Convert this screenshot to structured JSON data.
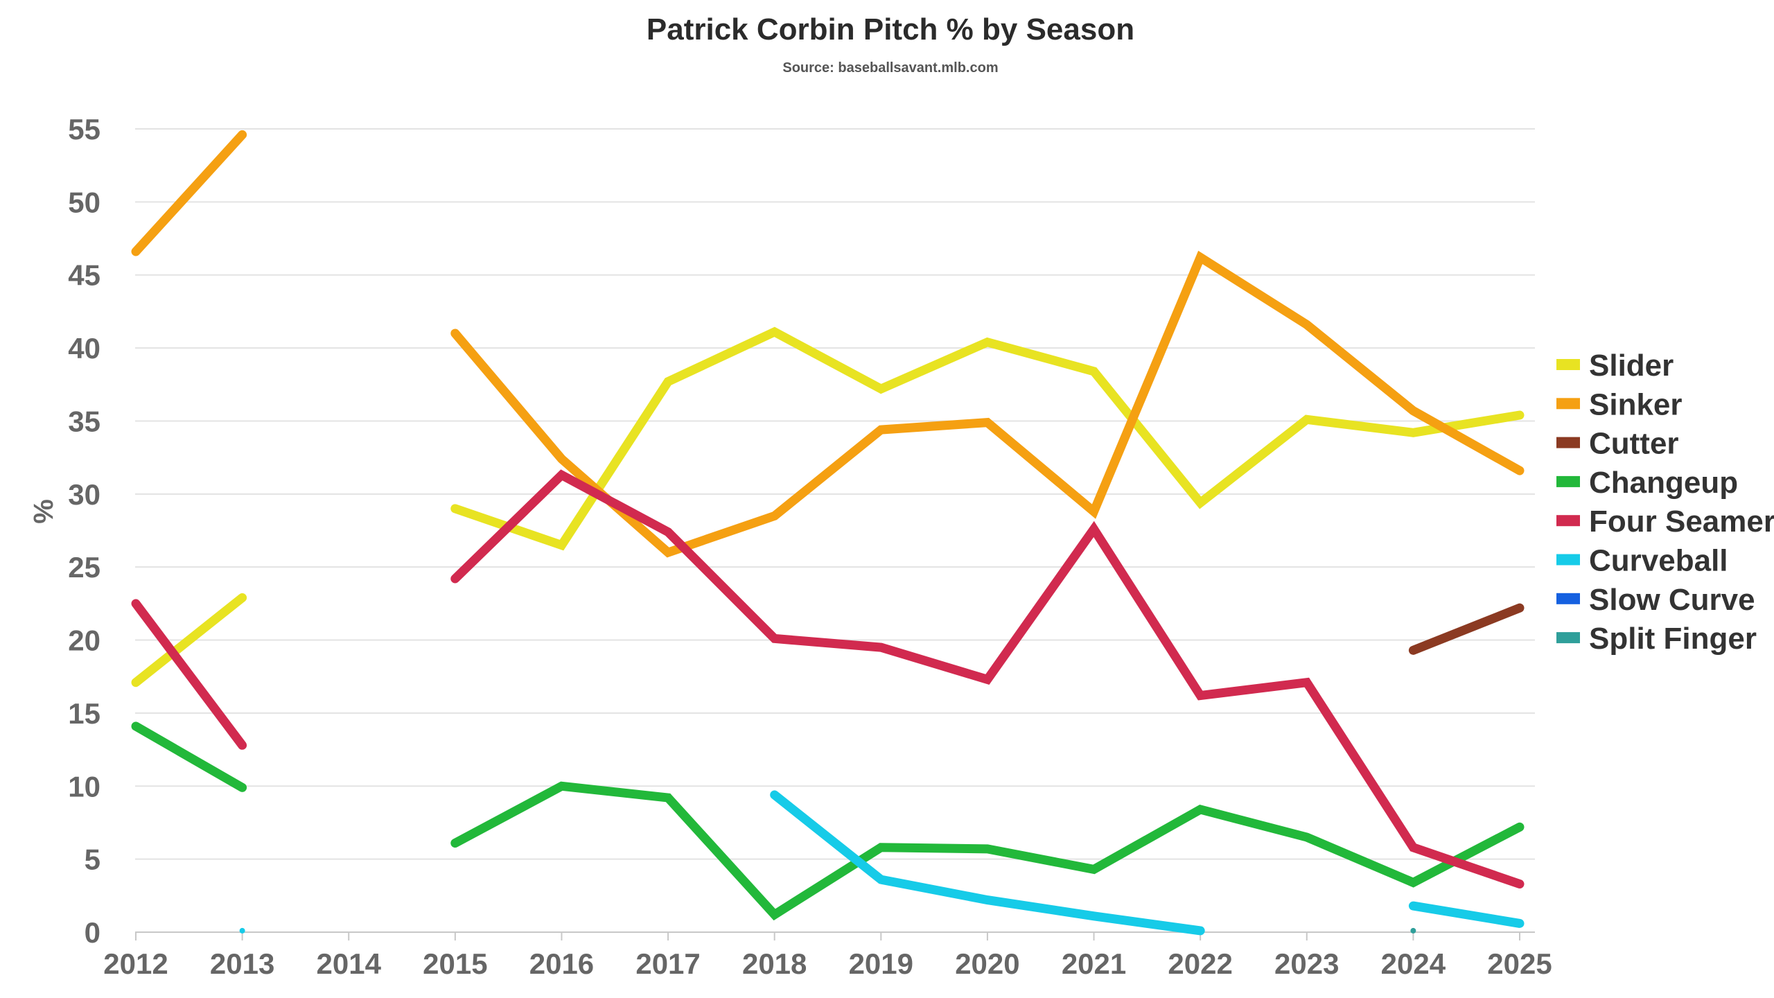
{
  "chart_data": {
    "type": "line",
    "title": "Patrick Corbin Pitch % by Season",
    "subtitle": "Source: baseballsavant.mlb.com",
    "xlabel": "",
    "ylabel": "%",
    "ylim": [
      0,
      55
    ],
    "yticks": [
      0,
      5,
      10,
      15,
      20,
      25,
      30,
      35,
      40,
      45,
      50,
      55
    ],
    "x": [
      2012,
      2013,
      2014,
      2015,
      2016,
      2017,
      2018,
      2019,
      2020,
      2021,
      2022,
      2023,
      2024,
      2025
    ],
    "grid": true,
    "legend": "right",
    "series": [
      {
        "name": "Slider",
        "color": "#e8e322",
        "values": [
          17.1,
          22.9,
          null,
          29.0,
          26.5,
          37.7,
          41.1,
          37.2,
          40.4,
          38.4,
          29.4,
          35.1,
          34.2,
          35.4
        ]
      },
      {
        "name": "Sinker",
        "color": "#f5a012",
        "values": [
          46.6,
          54.6,
          null,
          41.0,
          32.4,
          26.0,
          28.5,
          34.4,
          34.9,
          28.8,
          46.2,
          41.6,
          35.7,
          31.6
        ]
      },
      {
        "name": "Cutter",
        "color": "#8b3a22",
        "values": [
          null,
          null,
          null,
          null,
          null,
          null,
          null,
          null,
          null,
          null,
          null,
          null,
          19.3,
          22.2
        ]
      },
      {
        "name": "Changeup",
        "color": "#22b83a",
        "values": [
          14.1,
          9.9,
          null,
          6.1,
          10.0,
          9.2,
          1.2,
          5.8,
          5.7,
          4.3,
          8.4,
          6.5,
          3.4,
          7.2
        ]
      },
      {
        "name": "Four Seamer",
        "color": "#d12a4f",
        "values": [
          22.5,
          12.8,
          null,
          24.2,
          31.3,
          27.4,
          20.1,
          19.5,
          17.3,
          27.6,
          16.2,
          17.1,
          5.8,
          3.3
        ]
      },
      {
        "name": "Curveball",
        "color": "#16cbe8",
        "values": [
          null,
          0.1,
          null,
          null,
          null,
          null,
          9.4,
          3.6,
          2.2,
          1.1,
          0.1,
          null,
          1.8,
          0.6
        ]
      },
      {
        "name": "Slow Curve",
        "color": "#1560e0",
        "values": [
          null,
          null,
          null,
          null,
          null,
          null,
          null,
          null,
          null,
          null,
          null,
          null,
          null,
          null
        ]
      },
      {
        "name": "Split Finger",
        "color": "#2f9f9a",
        "values": [
          null,
          null,
          null,
          null,
          null,
          null,
          null,
          null,
          null,
          null,
          null,
          null,
          0.1,
          null
        ]
      }
    ]
  }
}
